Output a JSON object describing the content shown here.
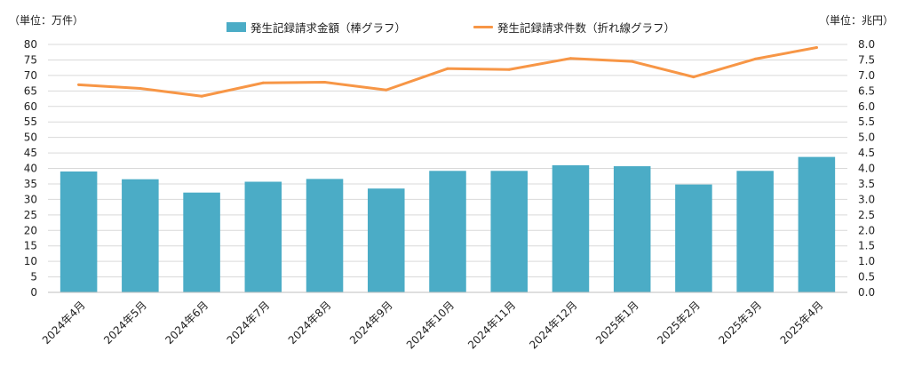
{
  "unit_left": "（単位：万件）",
  "unit_right": "（単位：兆円）",
  "colors": {
    "bar": "#4BACC6",
    "line": "#F79646",
    "grid": "#D9D9D9"
  },
  "chart_data": {
    "type": "bar",
    "categories": [
      "2024年4月",
      "2024年5月",
      "2024年6月",
      "2024年7月",
      "2024年8月",
      "2024年9月",
      "2024年10月",
      "2024年11月",
      "2024年12月",
      "2025年1月",
      "2025年2月",
      "2025年3月",
      "2025年4月"
    ],
    "series": [
      {
        "name": "発生記録請求金額（棒グラフ）",
        "type": "bar",
        "axis": "right",
        "values": [
          3.9,
          3.65,
          3.22,
          3.57,
          3.66,
          3.35,
          3.92,
          3.92,
          4.1,
          4.07,
          3.48,
          3.92,
          4.37
        ]
      },
      {
        "name": "発生記録請求件数（折れ線グラフ）",
        "type": "line",
        "axis": "left",
        "values": [
          67.0,
          65.8,
          63.3,
          67.6,
          67.8,
          65.3,
          72.2,
          71.9,
          75.5,
          74.5,
          69.5,
          75.3,
          79.0
        ]
      }
    ],
    "y_left": {
      "range": [
        0,
        80
      ],
      "step": 5
    },
    "y_right": {
      "range": [
        0,
        8
      ],
      "step": 0.5
    },
    "grid": true,
    "legend_position": "top"
  }
}
